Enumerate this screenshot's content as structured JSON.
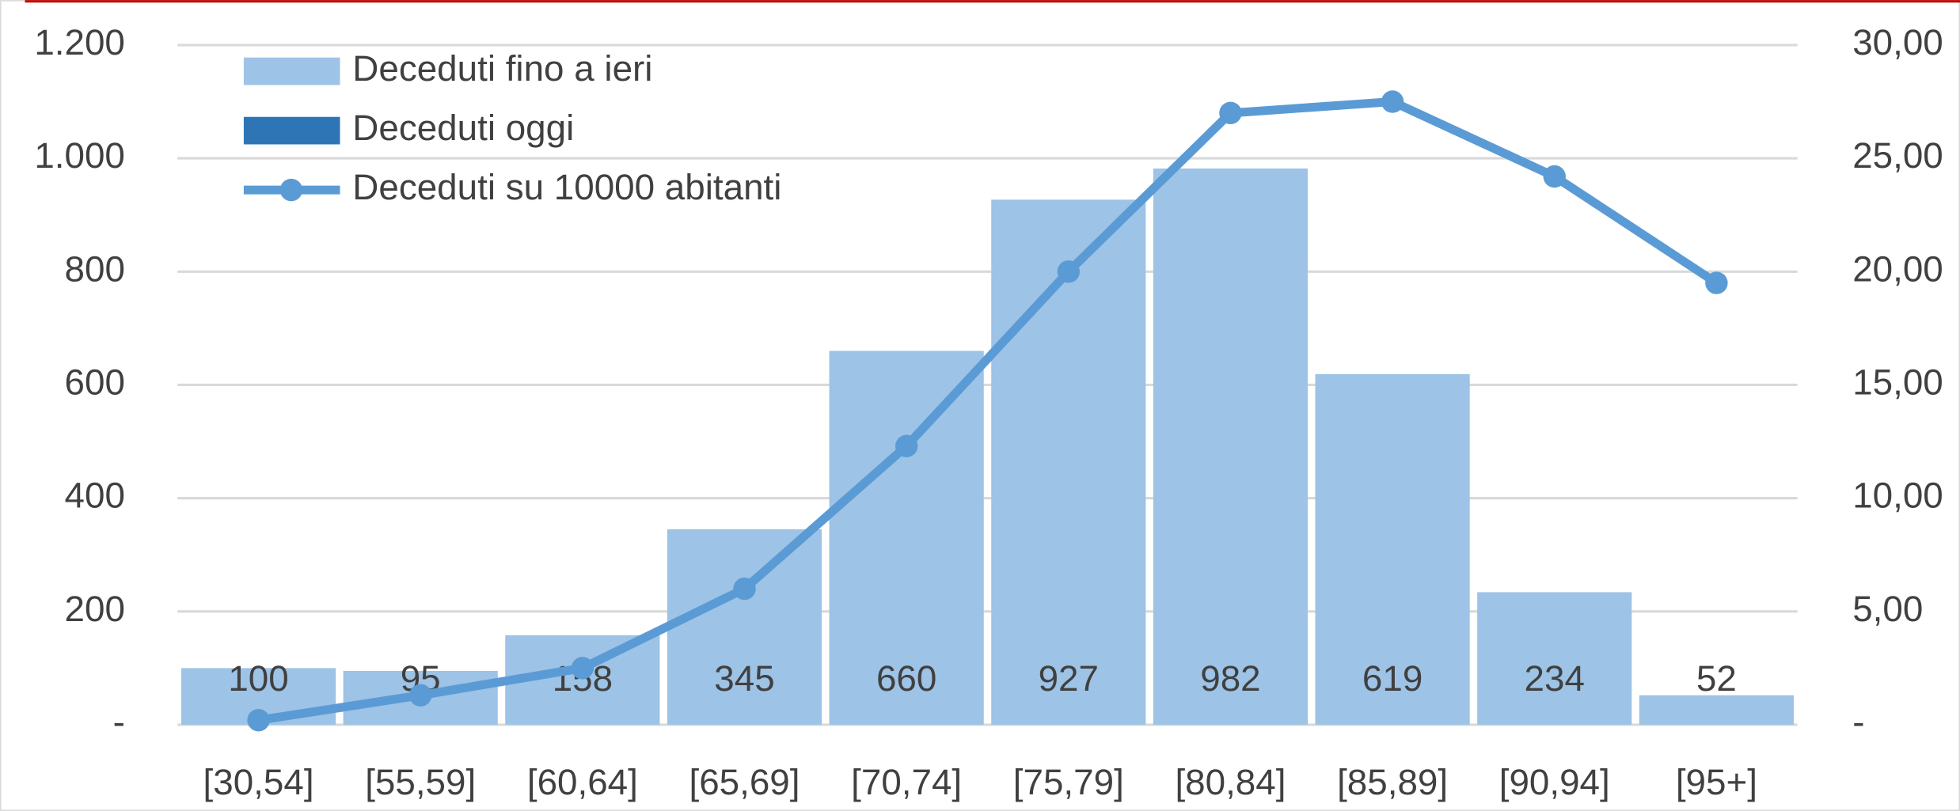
{
  "chart_data": {
    "type": "bar",
    "categories": [
      "[30,54]",
      "[55,59]",
      "[60,64]",
      "[65,69]",
      "[70,74]",
      "[75,79]",
      "[80,84]",
      "[85,89]",
      "[90,94]",
      "[95+]"
    ],
    "series": [
      {
        "name": "Deceduti fino a ieri",
        "color": "#9dc3e6",
        "values": [
          100,
          95,
          158,
          345,
          660,
          927,
          982,
          619,
          234,
          52
        ]
      },
      {
        "name": "Deceduti oggi",
        "color": "#2e75b6",
        "values": [
          0,
          0,
          0,
          0,
          0,
          0,
          0,
          0,
          0,
          0
        ]
      },
      {
        "name": "Deceduti su 10000 abitanti",
        "color": "#5b9bd5",
        "type": "line",
        "axis": "y2",
        "values": [
          0.2,
          1.3,
          2.5,
          6.0,
          12.3,
          20.0,
          27.0,
          27.5,
          24.2,
          19.5
        ]
      }
    ],
    "ylim": [
      0,
      1200
    ],
    "yticks": [
      {
        "value": 0,
        "label": "-"
      },
      200,
      400,
      600,
      800,
      {
        "value": 1000,
        "label": "1.000"
      },
      {
        "value": 1200,
        "label": "1.200"
      }
    ],
    "y2lim": [
      0,
      30
    ],
    "y2ticks": [
      {
        "value": 0,
        "label": "-"
      },
      {
        "value": 5,
        "label": "5,00"
      },
      {
        "value": 10,
        "label": "10,00"
      },
      {
        "value": 15,
        "label": "15,00"
      },
      {
        "value": 20,
        "label": "20,00"
      },
      {
        "value": 25,
        "label": "25,00"
      },
      {
        "value": 30,
        "label": "30,00"
      }
    ],
    "grid": true,
    "legend": "top-left"
  }
}
